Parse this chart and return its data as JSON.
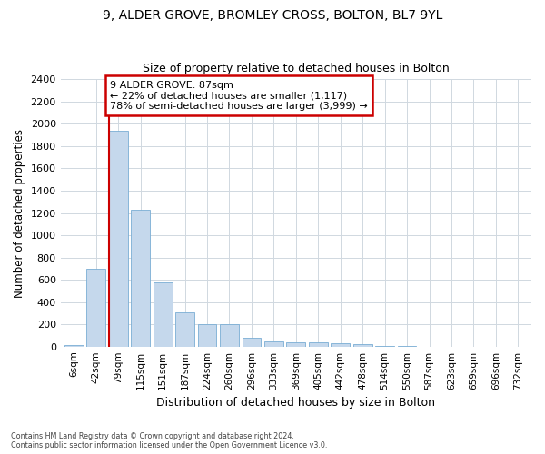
{
  "title_line1": "9, ALDER GROVE, BROMLEY CROSS, BOLTON, BL7 9YL",
  "title_line2": "Size of property relative to detached houses in Bolton",
  "xlabel": "Distribution of detached houses by size in Bolton",
  "ylabel": "Number of detached properties",
  "bar_color": "#c5d8ec",
  "bar_edge_color": "#7aadd4",
  "highlight_line_color": "#cc0000",
  "annotation_text": "9 ALDER GROVE: 87sqm\n← 22% of detached houses are smaller (1,117)\n78% of semi-detached houses are larger (3,999) →",
  "annotation_box_color": "#ffffff",
  "annotation_box_edge_color": "#cc0000",
  "categories": [
    "6sqm",
    "42sqm",
    "79sqm",
    "115sqm",
    "151sqm",
    "187sqm",
    "224sqm",
    "260sqm",
    "296sqm",
    "333sqm",
    "369sqm",
    "405sqm",
    "442sqm",
    "478sqm",
    "514sqm",
    "550sqm",
    "587sqm",
    "623sqm",
    "659sqm",
    "696sqm",
    "732sqm"
  ],
  "values": [
    15,
    700,
    1940,
    1230,
    580,
    305,
    200,
    200,
    80,
    48,
    38,
    35,
    32,
    18,
    5,
    2,
    1,
    0,
    0,
    0,
    0
  ],
  "ylim": [
    0,
    2400
  ],
  "yticks": [
    0,
    200,
    400,
    600,
    800,
    1000,
    1200,
    1400,
    1600,
    1800,
    2000,
    2200,
    2400
  ],
  "highlight_bar_index": 2,
  "footnote": "Contains HM Land Registry data © Crown copyright and database right 2024.\nContains public sector information licensed under the Open Government Licence v3.0.",
  "background_color": "#ffffff",
  "plot_background_color": "#ffffff",
  "grid_color": "#d0d8e0"
}
